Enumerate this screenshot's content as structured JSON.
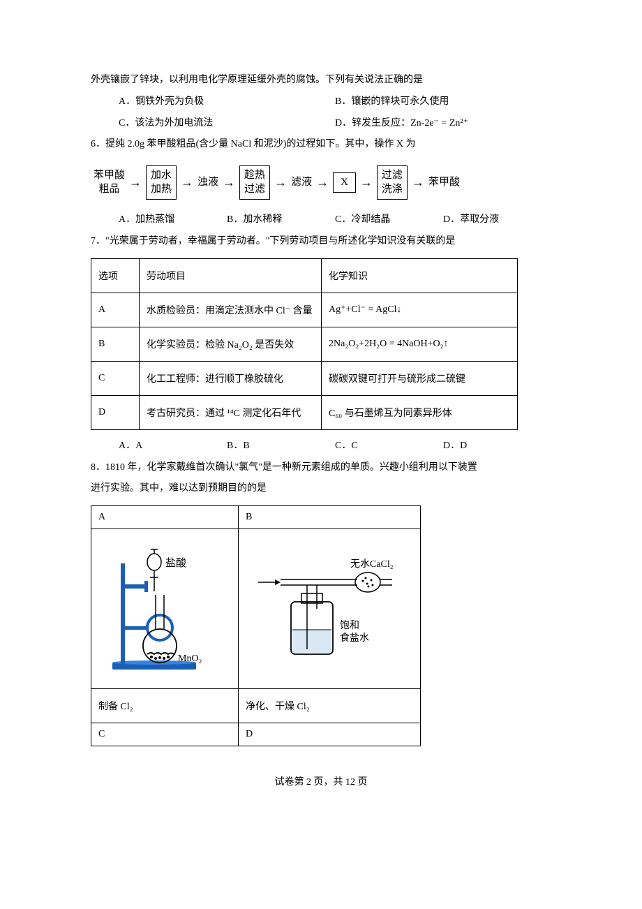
{
  "q5": {
    "cont": "外壳镶嵌了锌块，以利用电化学原理延缓外壳的腐蚀。下列有关说法正确的是",
    "opts": {
      "A": "A．钢铁外壳为负极",
      "B": "B．镶嵌的锌块可永久使用",
      "C": "C．该法为外加电流法",
      "D": "D．锌发生反应：Zn-2e⁻ = Zn²⁺"
    }
  },
  "q6": {
    "stem": "6．提纯 2.0g 苯甲酸粗品(含少量 NaCl 和泥沙)的过程如下。其中，操作 X 为",
    "flow": {
      "start_l1": "苯甲酸",
      "start_l2": "粗品",
      "box1_l1": "加水",
      "box1_l2": "加热",
      "mid1": "浊液",
      "box2_l1": "趁热",
      "box2_l2": "过滤",
      "mid2": "滤液",
      "box3": "X",
      "box4_l1": "过滤",
      "box4_l2": "洗涤",
      "end": "苯甲酸"
    },
    "opts": {
      "A": "A．加热蒸馏",
      "B": "B．加水稀释",
      "C": "C．冷却结晶",
      "D": "D．萃取分液"
    }
  },
  "q7": {
    "stem": "7．\"光荣属于劳动者，幸福属于劳动者。\"下列劳动项目与所述化学知识没有关联的是",
    "header": {
      "c1": "选项",
      "c2": "劳动项目",
      "c3": "化学知识"
    },
    "rows": [
      {
        "opt": "A",
        "proj": "水质检验员：用滴定法测水中 Cl⁻ 含量",
        "chem": "Ag⁺+Cl⁻ = AgCl↓"
      },
      {
        "opt": "B",
        "proj": "化学实验员：检验 Na₂O₂ 是否失效",
        "chem": "2Na₂O₂+2H₂O = 4NaOH+O₂↑"
      },
      {
        "opt": "C",
        "proj": "化工工程师：进行顺丁橡胶硫化",
        "chem": "碳碳双键可打开与硫形成二硫键"
      },
      {
        "opt": "D",
        "proj": "考古研究员：通过 ¹⁴C 测定化石年代",
        "chem": "C₆₀ 与石墨烯互为同素异形体"
      }
    ],
    "opts": {
      "A": "A．A",
      "B": "B．B",
      "C": "C．C",
      "D": "D．D"
    },
    "col_widths": {
      "c1": "48px",
      "c2": "240px",
      "c3": "260px"
    }
  },
  "q8": {
    "stem1": "8．1810 年，化学家戴维首次确认\"氯气\"是一种新元素组成的单质。兴趣小组利用以下装置",
    "stem2": "进行实验。其中，难以达到预期目的的是",
    "cells": {
      "A_label": "A",
      "B_label": "B",
      "C_label": "C",
      "D_label": "D",
      "A_caption": "制备 Cl₂",
      "B_caption": "净化、干燥 Cl₂",
      "A_reagent_top": "盐酸",
      "A_reagent_bottom": "MnO₂",
      "B_reagent_top": "无水CaCl₂",
      "B_reagent_mid1": "饱和",
      "B_reagent_mid2": "食盐水"
    },
    "col_widths": {
      "c1": "190px",
      "c2": "240px"
    },
    "colors": {
      "stand": "#1a5fb4",
      "flask": "#3584e4",
      "liquid": "#c0d8ee"
    }
  },
  "footer": "试卷第 2 页，共 12 页",
  "watermark": ""
}
